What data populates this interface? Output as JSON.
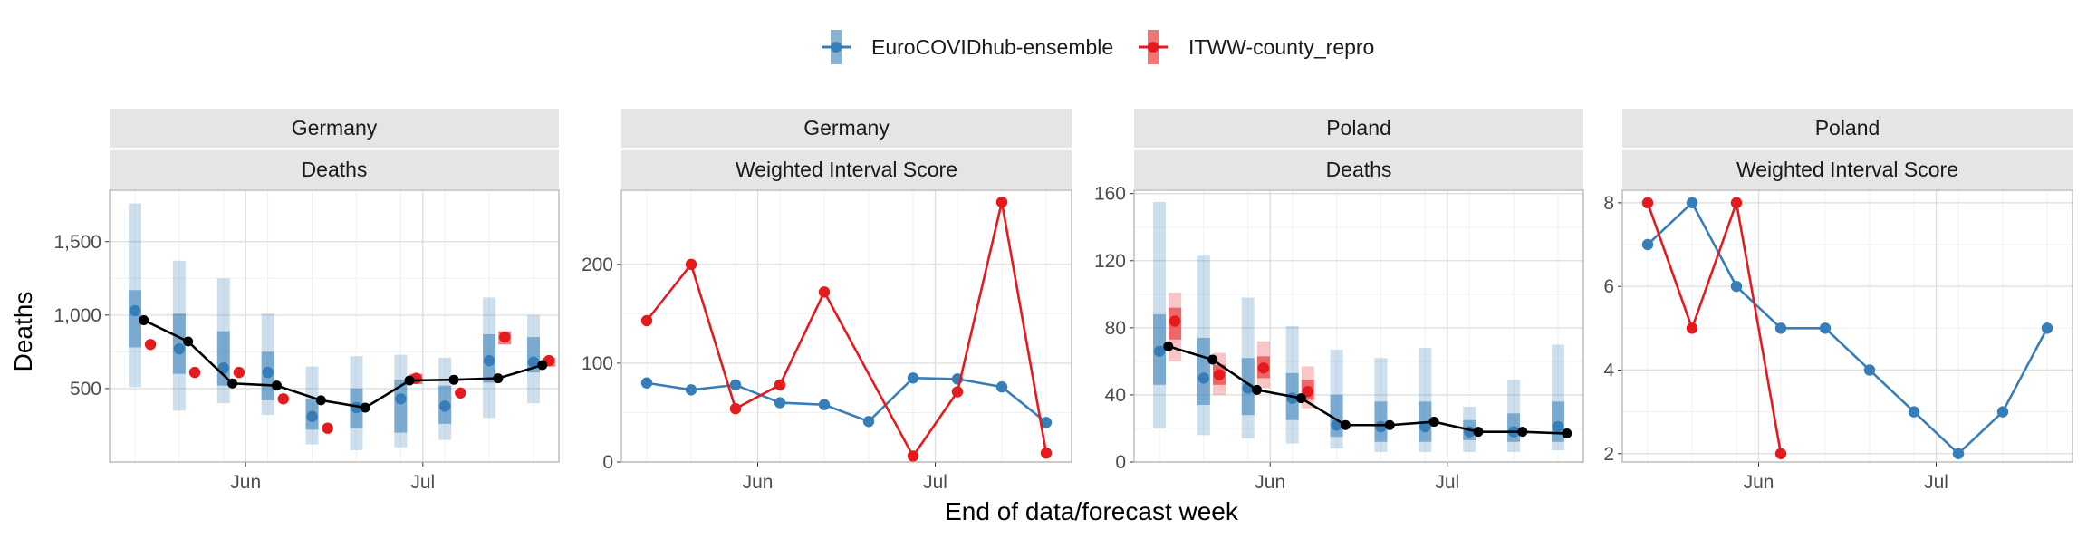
{
  "legend": {
    "items": [
      {
        "name": "EuroCOVIDhub-ensemble",
        "color": "#377eb8"
      },
      {
        "name": "ITWW-county_repro",
        "color": "#e41a1c"
      }
    ]
  },
  "colors": {
    "ensemble": "#377eb8",
    "itww": "#e41a1c",
    "truth": "#000000"
  },
  "axes": {
    "ylabel": "Deaths",
    "xlabel": "End of data/forecast week"
  },
  "chart_data": [
    {
      "type": "line",
      "facet": [
        "Germany",
        "Deaths"
      ],
      "x": [
        0,
        1,
        2,
        3,
        4,
        5,
        6,
        7,
        8,
        9
      ],
      "ylim": [
        0,
        1850
      ],
      "yticks": [
        500,
        1000,
        1500
      ],
      "yticklabels": [
        "500",
        "1,000",
        "1,500"
      ],
      "xticks": [
        {
          "label": "Jun",
          "x": 2.5
        },
        {
          "label": "Jul",
          "x": 6.5
        }
      ],
      "truth": [
        {
          "x": 0.2,
          "y": 965
        },
        {
          "x": 1.2,
          "y": 820
        },
        {
          "x": 2.2,
          "y": 535
        },
        {
          "x": 3.2,
          "y": 520
        },
        {
          "x": 4.2,
          "y": 420
        },
        {
          "x": 5.2,
          "y": 370
        },
        {
          "x": 6.2,
          "y": 555
        },
        {
          "x": 7.2,
          "y": 560
        },
        {
          "x": 8.2,
          "y": 570
        },
        {
          "x": 9.2,
          "y": 660
        }
      ],
      "series": [
        {
          "name": "EuroCOVIDhub-ensemble",
          "points": [
            {
              "x": 0,
              "y": 1030,
              "lo": 510,
              "hi": 1760,
              "lo50": 780,
              "hi50": 1170
            },
            {
              "x": 1,
              "y": 770,
              "lo": 350,
              "hi": 1370,
              "lo50": 600,
              "hi50": 1010
            },
            {
              "x": 2,
              "y": 640,
              "lo": 400,
              "hi": 1250,
              "lo50": 520,
              "hi50": 890
            },
            {
              "x": 3,
              "y": 610,
              "lo": 320,
              "hi": 1010,
              "lo50": 420,
              "hi50": 750
            },
            {
              "x": 4,
              "y": 310,
              "lo": 120,
              "hi": 650,
              "lo50": 220,
              "hi50": 430
            },
            {
              "x": 5,
              "y": 370,
              "lo": 80,
              "hi": 720,
              "lo50": 230,
              "hi50": 500
            },
            {
              "x": 6,
              "y": 430,
              "lo": 100,
              "hi": 730,
              "lo50": 200,
              "hi50": 560
            },
            {
              "x": 7,
              "y": 380,
              "lo": 150,
              "hi": 710,
              "lo50": 260,
              "hi50": 520
            },
            {
              "x": 8,
              "y": 690,
              "lo": 300,
              "hi": 1120,
              "lo50": 540,
              "hi50": 870
            },
            {
              "x": 9,
              "y": 680,
              "lo": 400,
              "hi": 1000,
              "lo50": 610,
              "hi50": 850
            }
          ]
        },
        {
          "name": "ITWW-county_repro",
          "points": [
            {
              "x": 0.35,
              "y": 800
            },
            {
              "x": 1.35,
              "y": 610
            },
            {
              "x": 2.35,
              "y": 610
            },
            {
              "x": 3.35,
              "y": 430
            },
            {
              "x": 4.35,
              "y": 230
            },
            {
              "x": 6.35,
              "y": 570,
              "lo50": 530,
              "hi50": 600
            },
            {
              "x": 7.35,
              "y": 470
            },
            {
              "x": 8.35,
              "y": 850,
              "lo50": 800,
              "hi50": 890
            },
            {
              "x": 9.35,
              "y": 690,
              "lo50": 650,
              "hi50": 710
            }
          ]
        }
      ]
    },
    {
      "type": "line",
      "facet": [
        "Germany",
        "Weighted Interval Score"
      ],
      "x": [
        0,
        1,
        2,
        3,
        4,
        5,
        6,
        7,
        8,
        9
      ],
      "ylim": [
        0,
        275
      ],
      "yticks": [
        0,
        100,
        200
      ],
      "yticklabels": [
        "0",
        "100",
        "200"
      ],
      "xticks": [
        {
          "label": "Jun",
          "x": 2.5
        },
        {
          "label": "Jul",
          "x": 6.5
        }
      ],
      "series": [
        {
          "name": "EuroCOVIDhub-ensemble",
          "points": [
            {
              "x": 0,
              "y": 80
            },
            {
              "x": 1,
              "y": 73
            },
            {
              "x": 2,
              "y": 78
            },
            {
              "x": 3,
              "y": 60
            },
            {
              "x": 4,
              "y": 58
            },
            {
              "x": 5,
              "y": 41
            },
            {
              "x": 6,
              "y": 85
            },
            {
              "x": 7,
              "y": 84
            },
            {
              "x": 8,
              "y": 76
            },
            {
              "x": 9,
              "y": 40
            }
          ]
        },
        {
          "name": "ITWW-county_repro",
          "points": [
            {
              "x": 0,
              "y": 143
            },
            {
              "x": 1,
              "y": 200
            },
            {
              "x": 2,
              "y": 54
            },
            {
              "x": 3,
              "y": 78
            },
            {
              "x": 4,
              "y": 172
            },
            {
              "x": 6,
              "y": 6
            },
            {
              "x": 7,
              "y": 71
            },
            {
              "x": 8,
              "y": 263
            },
            {
              "x": 9,
              "y": 9
            }
          ]
        }
      ]
    },
    {
      "type": "line",
      "facet": [
        "Poland",
        "Deaths"
      ],
      "x": [
        0,
        1,
        2,
        3,
        4,
        5,
        6,
        7,
        8,
        9
      ],
      "ylim": [
        0,
        162
      ],
      "yticks": [
        0,
        40,
        80,
        120,
        160
      ],
      "yticklabels": [
        "0",
        "40",
        "80",
        "120",
        "160"
      ],
      "xticks": [
        {
          "label": "Jun",
          "x": 2.5
        },
        {
          "label": "Jul",
          "x": 6.5
        }
      ],
      "truth": [
        {
          "x": 0.2,
          "y": 69
        },
        {
          "x": 1.2,
          "y": 61
        },
        {
          "x": 2.2,
          "y": 43
        },
        {
          "x": 3.2,
          "y": 38
        },
        {
          "x": 4.2,
          "y": 22
        },
        {
          "x": 5.2,
          "y": 22
        },
        {
          "x": 6.2,
          "y": 24
        },
        {
          "x": 7.2,
          "y": 18
        },
        {
          "x": 8.2,
          "y": 18
        },
        {
          "x": 9.2,
          "y": 17
        }
      ],
      "series": [
        {
          "name": "EuroCOVIDhub-ensemble",
          "points": [
            {
              "x": 0,
              "y": 66,
              "lo": 20,
              "hi": 155,
              "lo50": 46,
              "hi50": 88
            },
            {
              "x": 1,
              "y": 50,
              "lo": 16,
              "hi": 123,
              "lo50": 34,
              "hi50": 74
            },
            {
              "x": 2,
              "y": 44,
              "lo": 14,
              "hi": 98,
              "lo50": 28,
              "hi50": 62
            },
            {
              "x": 3,
              "y": 38,
              "lo": 11,
              "hi": 81,
              "lo50": 25,
              "hi50": 53
            },
            {
              "x": 4,
              "y": 22,
              "lo": 8,
              "hi": 67,
              "lo50": 15,
              "hi50": 40
            },
            {
              "x": 5,
              "y": 21,
              "lo": 6,
              "hi": 62,
              "lo50": 12,
              "hi50": 36
            },
            {
              "x": 6,
              "y": 21,
              "lo": 6,
              "hi": 68,
              "lo50": 12,
              "hi50": 36
            },
            {
              "x": 7,
              "y": 18,
              "lo": 6,
              "hi": 33,
              "lo50": 13,
              "hi50": 25
            },
            {
              "x": 8,
              "y": 18,
              "lo": 6,
              "hi": 49,
              "lo50": 12,
              "hi50": 29
            },
            {
              "x": 9,
              "y": 21,
              "lo": 7,
              "hi": 70,
              "lo50": 12,
              "hi50": 36
            }
          ]
        },
        {
          "name": "ITWW-county_repro",
          "points": [
            {
              "x": 0.35,
              "y": 84,
              "lo": 60,
              "hi": 101,
              "lo50": 73,
              "hi50": 92
            },
            {
              "x": 1.35,
              "y": 52,
              "lo": 40,
              "hi": 65,
              "lo50": 46,
              "hi50": 58
            },
            {
              "x": 2.35,
              "y": 56,
              "lo": 44,
              "hi": 72,
              "lo50": 50,
              "hi50": 63
            },
            {
              "x": 3.35,
              "y": 42,
              "lo": 32,
              "hi": 57,
              "lo50": 37,
              "hi50": 49
            }
          ]
        }
      ]
    },
    {
      "type": "line",
      "facet": [
        "Poland",
        "Weighted Interval Score"
      ],
      "x": [
        0,
        1,
        2,
        3,
        4,
        5,
        6,
        7,
        8,
        9
      ],
      "ylim": [
        1.8,
        8.3
      ],
      "yticks": [
        2,
        4,
        6,
        8
      ],
      "yticklabels": [
        "2",
        "4",
        "6",
        "8"
      ],
      "xticks": [
        {
          "label": "Jun",
          "x": 2.5
        },
        {
          "label": "Jul",
          "x": 6.5
        }
      ],
      "series": [
        {
          "name": "EuroCOVIDhub-ensemble",
          "points": [
            {
              "x": 0,
              "y": 7
            },
            {
              "x": 1,
              "y": 8
            },
            {
              "x": 2,
              "y": 6
            },
            {
              "x": 3,
              "y": 5
            },
            {
              "x": 4,
              "y": 5
            },
            {
              "x": 5,
              "y": 4
            },
            {
              "x": 6,
              "y": 3
            },
            {
              "x": 7,
              "y": 2
            },
            {
              "x": 8,
              "y": 3
            },
            {
              "x": 9,
              "y": 5
            }
          ]
        },
        {
          "name": "ITWW-county_repro",
          "points": [
            {
              "x": 0,
              "y": 8
            },
            {
              "x": 1,
              "y": 5
            },
            {
              "x": 2,
              "y": 8
            },
            {
              "x": 3,
              "y": 2
            }
          ]
        }
      ]
    }
  ]
}
